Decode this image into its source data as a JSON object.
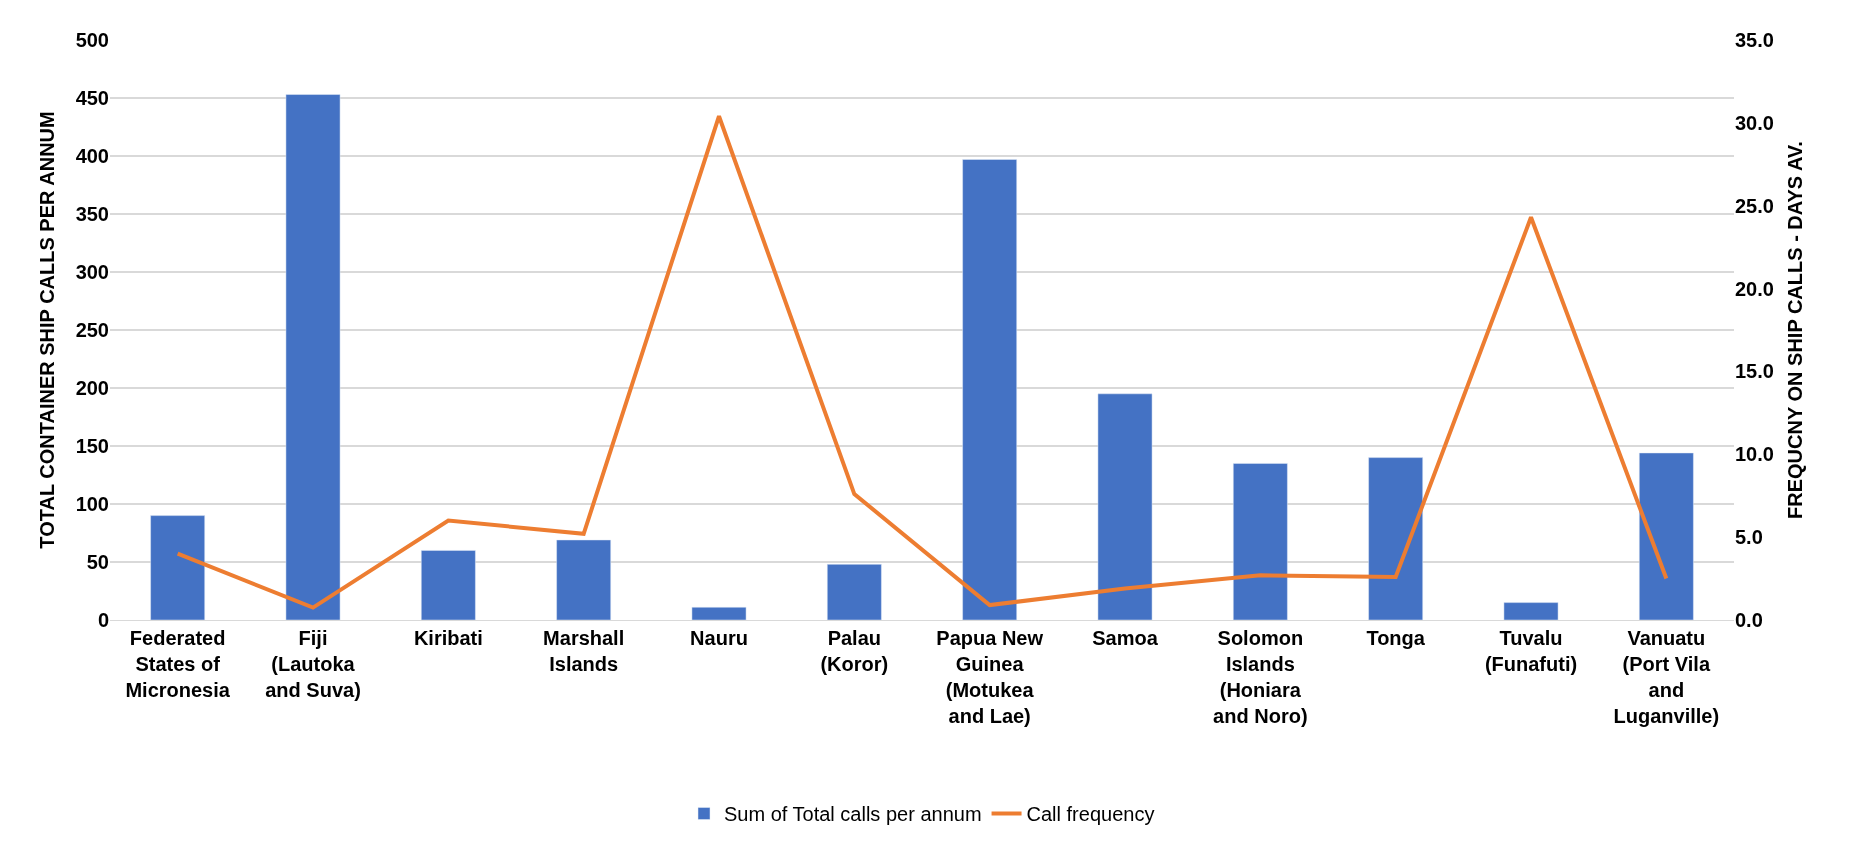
{
  "chart_data": {
    "type": "bar",
    "ylabel": "TOTAL CONTAINER SHIP CALLS PER ANNUM",
    "y2label": "FREQUCNY ON SHIP CALLS - DAYS AV.",
    "categories": [
      "Federated States of Micronesia",
      "Fiji (Lautoka and Suva)",
      "Kiribati",
      "Marshall Islands",
      "Nauru",
      "Palau (Koror)",
      "Papua New Guinea (Motukea and Lae)",
      "Samoa",
      "Solomon Islands (Honiara and Noro)",
      "Tonga",
      "Tuvalu (Funafuti)",
      "Vanuatu (Port Vila and Luganville)"
    ],
    "series": [
      {
        "name": "Sum of Total calls per annum",
        "color": "#4472c4",
        "values": [
          90,
          453,
          60,
          69,
          11,
          48,
          397,
          195,
          135,
          140,
          15,
          144
        ]
      },
      {
        "name": "Call frequency",
        "type": "line",
        "axis": "y2",
        "color": "#ed7d31",
        "values": [
          4.0,
          0.75,
          6.0,
          5.2,
          30.4,
          7.6,
          0.9,
          1.9,
          2.7,
          2.6,
          24.3,
          2.5
        ]
      }
    ],
    "ylim": [
      0,
      500
    ],
    "yticks": [
      0,
      50,
      100,
      150,
      200,
      250,
      300,
      350,
      400,
      450,
      500
    ],
    "y2lim": [
      0,
      35
    ],
    "y2ticks": [
      {
        "value": 0,
        "label": "0.0"
      },
      {
        "value": 5,
        "label": "5.0"
      },
      {
        "value": 10,
        "label": "10.0"
      },
      {
        "value": 15,
        "label": "15.0"
      },
      {
        "value": 20,
        "label": "20.0"
      },
      {
        "value": 25,
        "label": "25.0"
      },
      {
        "value": 30,
        "label": "30.0"
      },
      {
        "value": 35,
        "label": "35.0"
      }
    ],
    "grid": "y",
    "legend": "bottom",
    "marker": "none"
  }
}
